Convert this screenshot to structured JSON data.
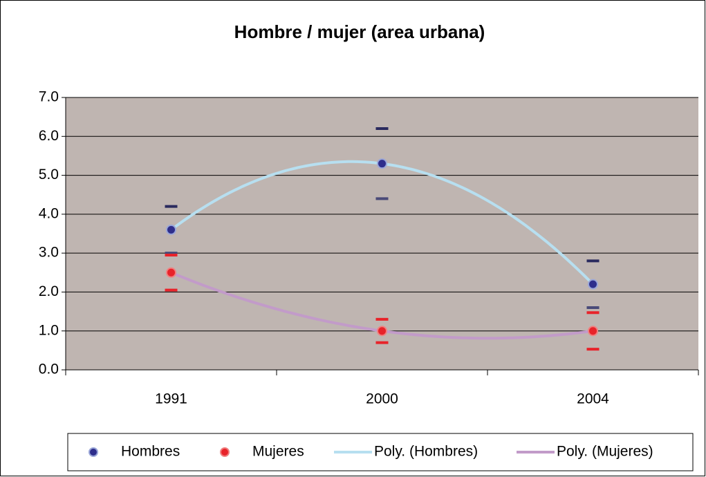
{
  "chart_data": {
    "type": "scatter",
    "title": "Hombre / mujer (area urbana)",
    "categories": [
      "1991",
      "2000",
      "2004"
    ],
    "series": [
      {
        "name": "Hombres",
        "color": "#2e2e8c",
        "values": [
          3.6,
          5.3,
          2.2
        ],
        "errors": [
          0.6,
          0.9,
          0.6
        ]
      },
      {
        "name": "Mujeres",
        "color": "#e8232a",
        "values": [
          2.5,
          1.0,
          1.0
        ],
        "errors": [
          0.45,
          0.3,
          0.47
        ]
      }
    ],
    "trendlines": [
      {
        "name": "Poly. (Hombres)",
        "color": "#b7dff0",
        "order": 2
      },
      {
        "name": "Poly. (Mujeres)",
        "color": "#c29bc9",
        "order": 2
      }
    ],
    "ylim": [
      0,
      7
    ],
    "yticks": [
      {
        "value": 0,
        "label": "0.0"
      },
      {
        "value": 1,
        "label": "1.0"
      },
      {
        "value": 2,
        "label": "2.0"
      },
      {
        "value": 3,
        "label": "3.0"
      },
      {
        "value": 4,
        "label": "4.0"
      },
      {
        "value": 5,
        "label": "5.0"
      },
      {
        "value": 6,
        "label": "6.0"
      },
      {
        "value": 7,
        "label": "7.0"
      }
    ],
    "grid": true,
    "legend": "bottom"
  }
}
